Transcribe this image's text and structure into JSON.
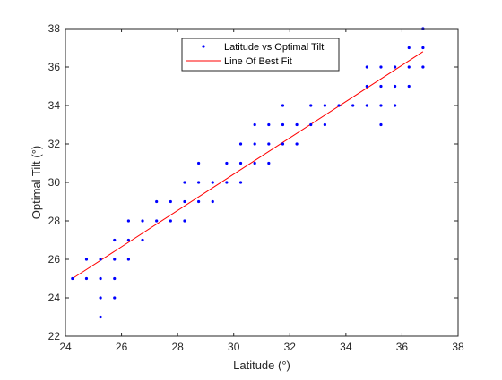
{
  "chart_data": {
    "type": "scatter",
    "title": "",
    "xlabel": "Latitude (°)",
    "ylabel": "Optimal Tilt (°)",
    "xlim": [
      24,
      38
    ],
    "ylim": [
      22,
      38
    ],
    "xticks": [
      24,
      26,
      28,
      30,
      32,
      34,
      36,
      38
    ],
    "yticks": [
      22,
      24,
      26,
      28,
      30,
      32,
      34,
      36,
      38
    ],
    "grid": false,
    "legend_position": "top-center",
    "series": [
      {
        "name": "Latitude vs Optimal Tilt",
        "type": "scatter",
        "color": "#0000ff",
        "points": [
          [
            24.25,
            25
          ],
          [
            24.75,
            25
          ],
          [
            24.75,
            26
          ],
          [
            25.25,
            23
          ],
          [
            25.25,
            24
          ],
          [
            25.25,
            25
          ],
          [
            25.25,
            26
          ],
          [
            25.75,
            24
          ],
          [
            25.75,
            25
          ],
          [
            25.75,
            26
          ],
          [
            25.75,
            27
          ],
          [
            26.25,
            26
          ],
          [
            26.25,
            27
          ],
          [
            26.25,
            28
          ],
          [
            26.75,
            27
          ],
          [
            26.75,
            28
          ],
          [
            27.25,
            28
          ],
          [
            27.25,
            29
          ],
          [
            27.75,
            28
          ],
          [
            27.75,
            29
          ],
          [
            28.25,
            28
          ],
          [
            28.25,
            29
          ],
          [
            28.25,
            30
          ],
          [
            28.75,
            29
          ],
          [
            28.75,
            30
          ],
          [
            28.75,
            31
          ],
          [
            29.25,
            29
          ],
          [
            29.25,
            30
          ],
          [
            29.75,
            30
          ],
          [
            29.75,
            31
          ],
          [
            30.25,
            30
          ],
          [
            30.25,
            31
          ],
          [
            30.25,
            32
          ],
          [
            30.75,
            31
          ],
          [
            30.75,
            32
          ],
          [
            30.75,
            33
          ],
          [
            31.25,
            31
          ],
          [
            31.25,
            32
          ],
          [
            31.25,
            33
          ],
          [
            31.75,
            32
          ],
          [
            31.75,
            33
          ],
          [
            31.75,
            34
          ],
          [
            32.25,
            32
          ],
          [
            32.25,
            33
          ],
          [
            32.75,
            33
          ],
          [
            32.75,
            34
          ],
          [
            33.25,
            33
          ],
          [
            33.25,
            34
          ],
          [
            33.75,
            34
          ],
          [
            34.25,
            34
          ],
          [
            34.75,
            34
          ],
          [
            34.75,
            35
          ],
          [
            34.75,
            36
          ],
          [
            35.25,
            33
          ],
          [
            35.25,
            34
          ],
          [
            35.25,
            35
          ],
          [
            35.25,
            36
          ],
          [
            35.75,
            34
          ],
          [
            35.75,
            35
          ],
          [
            35.75,
            36
          ],
          [
            36.25,
            35
          ],
          [
            36.25,
            36
          ],
          [
            36.25,
            37
          ],
          [
            36.75,
            36
          ],
          [
            36.75,
            37
          ],
          [
            36.75,
            38
          ]
        ]
      },
      {
        "name": "Line Of Best Fit",
        "type": "line",
        "color": "#ff0000",
        "points": [
          [
            24.25,
            25.0
          ],
          [
            36.75,
            36.8
          ]
        ]
      }
    ]
  }
}
